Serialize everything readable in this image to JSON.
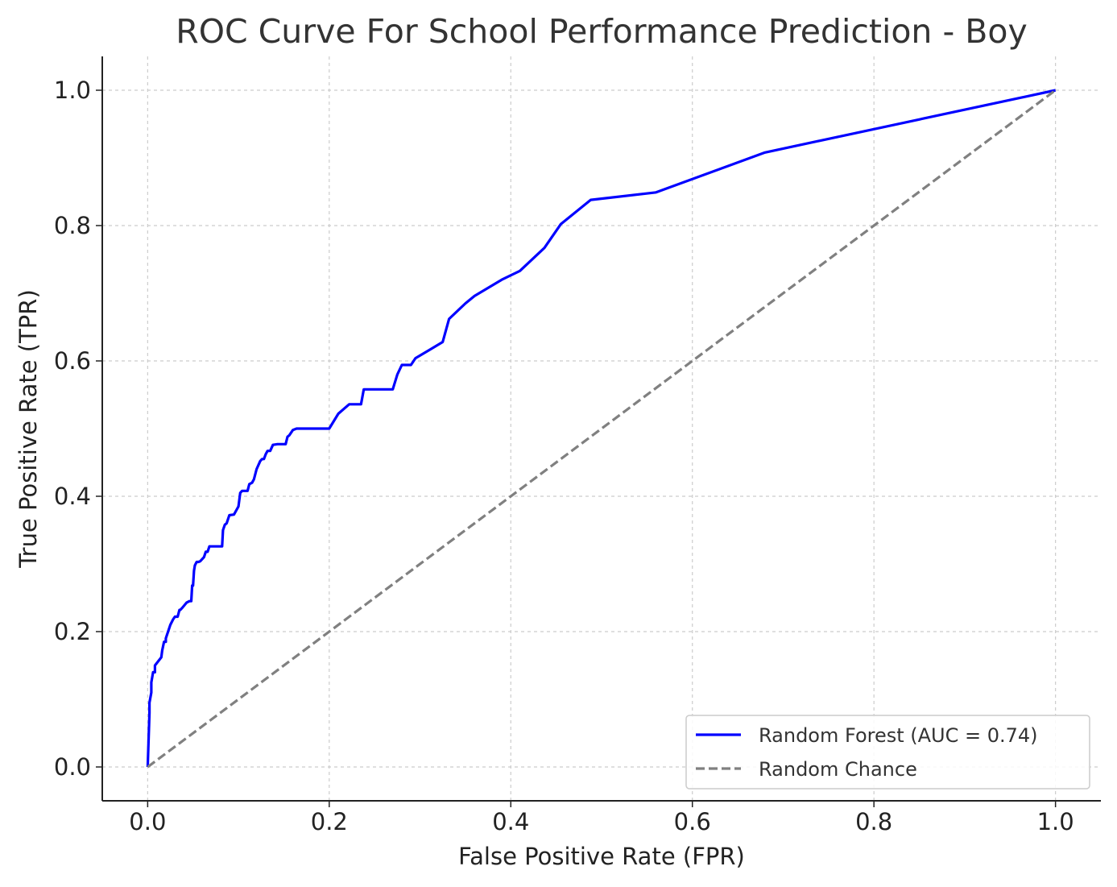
{
  "chart_data": {
    "type": "line",
    "title": "ROC Curve For School Performance Prediction - Boy",
    "xlabel": "False Positive Rate (FPR)",
    "ylabel": "True Positive Rate (TPR)",
    "xlim": [
      -0.05,
      1.05
    ],
    "ylim": [
      -0.05,
      1.05
    ],
    "xticks": [
      "0.0",
      "0.2",
      "0.4",
      "0.6",
      "0.8",
      "1.0"
    ],
    "yticks": [
      "0.0",
      "0.2",
      "0.4",
      "0.6",
      "0.8",
      "1.0"
    ],
    "xtick_values": [
      0,
      0.2,
      0.4,
      0.6,
      0.8,
      1.0
    ],
    "ytick_values": [
      0,
      0.2,
      0.4,
      0.6,
      0.8,
      1.0
    ],
    "grid": true,
    "legend_position": "bottom-right",
    "series": [
      {
        "name": "Random Forest (AUC = 0.74)",
        "color": "#0000ff",
        "style": "solid",
        "x": [
          0.0,
          0.002,
          0.002,
          0.004,
          0.004,
          0.006,
          0.006,
          0.008,
          0.008,
          0.015,
          0.016,
          0.018,
          0.02,
          0.02,
          0.025,
          0.028,
          0.03,
          0.033,
          0.035,
          0.036,
          0.038,
          0.043,
          0.046,
          0.048,
          0.049,
          0.05,
          0.051,
          0.052,
          0.054,
          0.056,
          0.058,
          0.062,
          0.064,
          0.066,
          0.068,
          0.07,
          0.073,
          0.078,
          0.082,
          0.083,
          0.085,
          0.087,
          0.09,
          0.095,
          0.1,
          0.102,
          0.104,
          0.108,
          0.11,
          0.112,
          0.115,
          0.117,
          0.12,
          0.124,
          0.126,
          0.128,
          0.13,
          0.132,
          0.135,
          0.138,
          0.143,
          0.152,
          0.154,
          0.156,
          0.16,
          0.164,
          0.2,
          0.21,
          0.222,
          0.235,
          0.238,
          0.27,
          0.275,
          0.28,
          0.29,
          0.295,
          0.31,
          0.325,
          0.332,
          0.35,
          0.36,
          0.39,
          0.41,
          0.437,
          0.455,
          0.488,
          0.56,
          0.68,
          1.0
        ],
        "y": [
          0.0,
          0.08,
          0.095,
          0.11,
          0.125,
          0.14,
          0.14,
          0.14,
          0.15,
          0.162,
          0.172,
          0.185,
          0.185,
          0.19,
          0.21,
          0.218,
          0.222,
          0.222,
          0.232,
          0.232,
          0.235,
          0.243,
          0.245,
          0.245,
          0.268,
          0.268,
          0.29,
          0.298,
          0.303,
          0.303,
          0.304,
          0.31,
          0.318,
          0.318,
          0.326,
          0.326,
          0.326,
          0.326,
          0.326,
          0.35,
          0.358,
          0.36,
          0.372,
          0.373,
          0.385,
          0.405,
          0.408,
          0.408,
          0.408,
          0.418,
          0.42,
          0.425,
          0.44,
          0.452,
          0.455,
          0.455,
          0.462,
          0.467,
          0.467,
          0.476,
          0.477,
          0.477,
          0.488,
          0.49,
          0.498,
          0.5,
          0.5,
          0.522,
          0.536,
          0.536,
          0.558,
          0.558,
          0.58,
          0.594,
          0.594,
          0.604,
          0.616,
          0.628,
          0.662,
          0.685,
          0.696,
          0.72,
          0.733,
          0.767,
          0.802,
          0.838,
          0.849,
          0.908,
          1.0
        ]
      },
      {
        "name": "Random Chance",
        "color": "#808080",
        "style": "dashed",
        "x": [
          0,
          1
        ],
        "y": [
          0,
          1
        ]
      }
    ]
  }
}
